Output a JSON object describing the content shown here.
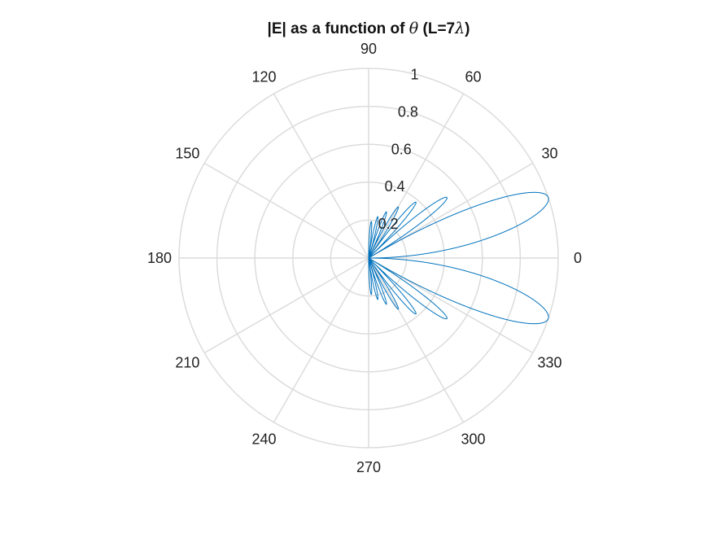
{
  "chart_data": {
    "type": "polar-line",
    "title": "|E| as a function of θ  (L=7λ)",
    "title_parts": {
      "prefix": "|E| as a function of ",
      "theta": "θ",
      "suffix_open": "  (L=7",
      "lambda": "λ",
      "suffix_close": ")"
    },
    "r_ticks": [
      0.2,
      0.4,
      0.6,
      0.8,
      1
    ],
    "r_tick_labels": [
      "0.2",
      "0.4",
      "0.6",
      "0.8",
      "1"
    ],
    "rlim": [
      0,
      1
    ],
    "theta_ticks": [
      0,
      30,
      60,
      90,
      120,
      150,
      180,
      210,
      240,
      270,
      300,
      330
    ],
    "theta_tick_labels": [
      "0",
      "30",
      "60",
      "90",
      "120",
      "150",
      "180",
      "210",
      "240",
      "270",
      "300",
      "330"
    ],
    "grid": true,
    "series": [
      {
        "length_in_wavelengths": 7,
        "theta_range_deg": [
          -90,
          90
        ],
        "color": "#0072BD"
      }
    ]
  },
  "colors": {
    "grid": "#dcdcdc",
    "series": "#0072BD",
    "text": "#222222"
  }
}
